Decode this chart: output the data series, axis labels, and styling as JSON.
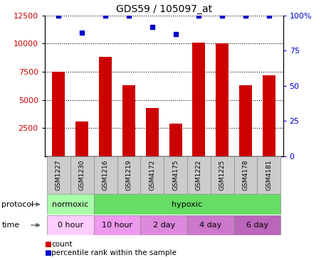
{
  "title": "GDS59 / 105097_at",
  "samples": [
    "GSM1227",
    "GSM1230",
    "GSM1216",
    "GSM1219",
    "GSM4172",
    "GSM4175",
    "GSM1222",
    "GSM1225",
    "GSM4178",
    "GSM4181"
  ],
  "counts": [
    7500,
    3100,
    8800,
    6300,
    4300,
    2900,
    10100,
    10000,
    6300,
    7200
  ],
  "percentiles": [
    100,
    88,
    100,
    100,
    92,
    87,
    100,
    100,
    100,
    100
  ],
  "ylim_left": [
    0,
    12500
  ],
  "ylim_right": [
    0,
    100
  ],
  "yticks_left": [
    2500,
    5000,
    7500,
    10000,
    12500
  ],
  "yticks_right": [
    0,
    25,
    50,
    75,
    100
  ],
  "bar_color": "#cc0000",
  "percentile_color": "#0000cc",
  "bar_width": 0.55,
  "normoxic_color": "#aaffaa",
  "hypoxic_color": "#66dd66",
  "time_colors": [
    "#ffccff",
    "#ee99ee",
    "#dd88dd",
    "#cc77cc",
    "#bb66bb"
  ],
  "tick_label_color_left": "#cc0000",
  "tick_label_color_right": "#0000cc",
  "bg_color": "#ffffff",
  "sample_bg_color": "#cccccc",
  "grid_color": "#000000"
}
